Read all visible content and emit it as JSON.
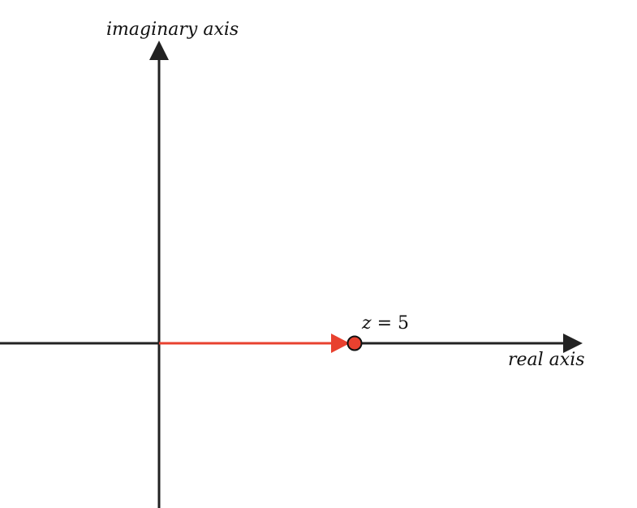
{
  "diagram": {
    "imaginary_axis_label": "imaginary axis",
    "real_axis_label": "real axis",
    "point_label_var": "z",
    "point_label_eq": " = ",
    "point_label_value": "5",
    "point": {
      "real": 5,
      "imaginary": 0
    },
    "colors": {
      "axis": "#222222",
      "vector": "#e8412f",
      "point_fill": "#e8412f",
      "point_stroke": "#111111",
      "text": "#111111"
    }
  }
}
